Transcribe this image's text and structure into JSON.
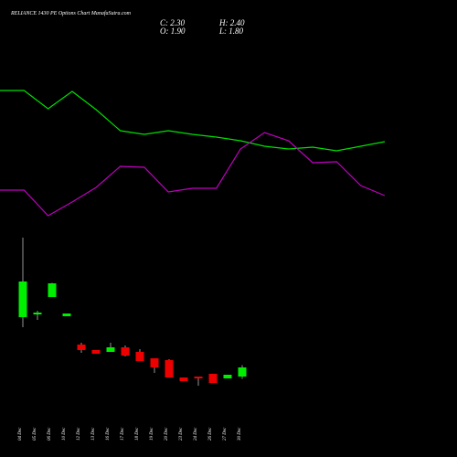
{
  "chart_data": [
    {
      "type": "line",
      "categories": [
        null,
        null,
        null,
        null,
        null,
        null,
        null,
        null,
        null,
        null,
        null,
        null,
        null,
        null,
        null,
        null,
        null
      ],
      "ylim": [
        240,
        420
      ],
      "series": [
        {
          "color": "#00e000",
          "values": [
            401,
            401,
            381,
            400,
            380,
            357,
            353,
            357,
            353,
            350,
            346,
            340,
            337,
            339,
            335,
            340,
            345
          ]
        },
        {
          "color": "#c000c0",
          "values": [
            292,
            292,
            264,
            279,
            295,
            318,
            317,
            290,
            294,
            294,
            337,
            355,
            346,
            322,
            323,
            297,
            286
          ]
        }
      ]
    },
    {
      "type": "candlestick",
      "title": "RELIANCE 1430  PE Options  Chart ManafaSutra.com",
      "info": [
        "C: 2.30",
        "O: 1.90",
        "H: 2.40",
        "L: 1.80"
      ],
      "categories": [
        "04 Dec",
        "05 Dec",
        "06 Dec",
        "10 Dec",
        "12 Dec",
        "13 Dec",
        "16 Dec",
        "17 Dec",
        "18 Dec",
        "19 Dec",
        "20 Dec",
        "23 Dec",
        "24 Dec",
        "26 Dec",
        "27 Dec",
        "30 Dec"
      ],
      "open": [
        4.5,
        4.62,
        5.38,
        4.54,
        3.3,
        3.06,
        2.98,
        3.18,
        2.98,
        2.7,
        2.62,
        1.86,
        1.9,
        2.02,
        1.82,
        1.9
      ],
      "high": [
        7.98,
        4.78,
        6.0,
        4.66,
        3.38,
        3.06,
        3.38,
        3.26,
        3.1,
        2.7,
        2.66,
        1.86,
        1.9,
        2.02,
        1.98,
        2.4
      ],
      "low": [
        4.06,
        4.38,
        5.38,
        4.54,
        2.94,
        2.9,
        2.98,
        2.78,
        2.58,
        2.06,
        1.86,
        1.7,
        1.5,
        1.62,
        1.82,
        1.8
      ],
      "close": [
        6.06,
        4.7,
        5.98,
        4.66,
        3.06,
        2.9,
        3.18,
        2.82,
        2.58,
        2.3,
        1.86,
        1.7,
        1.82,
        1.62,
        1.98,
        2.3
      ],
      "up_color": "#00ee00",
      "down_color": "#ee0000",
      "wick_color": "#bbbbbb",
      "ylim": [
        1.5,
        8.5
      ]
    }
  ]
}
